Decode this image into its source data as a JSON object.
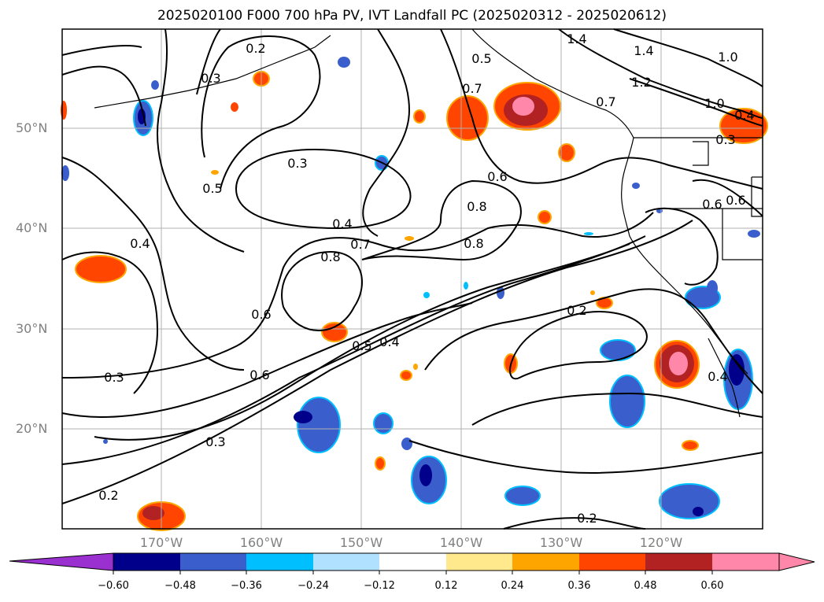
{
  "title": "2025020100 F000 700 hPa PV, IVT Landfall PC (2025020312 - 2025020612)",
  "map": {
    "lat_labels": [
      "50°N",
      "40°N",
      "30°N",
      "20°N"
    ],
    "lon_labels": [
      "170°W",
      "160°W",
      "150°W",
      "140°W",
      "130°W",
      "120°W"
    ],
    "contour_labels": [
      "0.2",
      "0.3",
      "0.5",
      "0.4",
      "1.4",
      "1.4",
      "1.0",
      "1.2",
      "0.7",
      "1.0",
      "0.7",
      "0.6",
      "0.3",
      "0.5",
      "0.8",
      "0.4",
      "0.7",
      "0.8",
      "0.8",
      "0.6",
      "0.6",
      "0.4",
      "0.5",
      "0.4",
      "0.6",
      "0.3",
      "0.3",
      "0.2",
      "0.2",
      "0.2",
      "0.4",
      "0.6",
      "0.3"
    ],
    "colors": {
      "land_outline": "#000000",
      "grid": "#b0b0b0"
    }
  },
  "colorbar": {
    "tick_labels": [
      "−0.60",
      "−0.48",
      "−0.36",
      "−0.24",
      "−0.12",
      "0.12",
      "0.24",
      "0.36",
      "0.48",
      "0.60"
    ],
    "bins": [
      "#9b30d0",
      "#00008b",
      "#3a5fcd",
      "#00bfff",
      "#b0e2ff",
      "#ffffff",
      "#ffe98c",
      "#ffa500",
      "#ff4500",
      "#b22222",
      "#ff88aa"
    ]
  }
}
